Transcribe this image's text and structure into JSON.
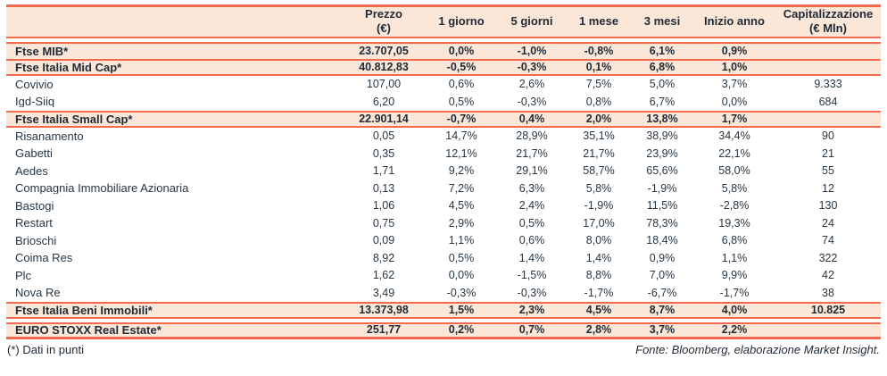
{
  "table": {
    "header": {
      "name_label": "",
      "columns": [
        {
          "line1": "Prezzo",
          "line2": "(€)"
        },
        {
          "line1": "1 giorno",
          "line2": ""
        },
        {
          "line1": "5 giorni",
          "line2": ""
        },
        {
          "line1": "1 mese",
          "line2": ""
        },
        {
          "line1": "3 mesi",
          "line2": ""
        },
        {
          "line1": "Inizio anno",
          "line2": ""
        },
        {
          "line1": "Capitalizzazione",
          "line2": "(€ Mln)"
        }
      ]
    },
    "rows": [
      {
        "name": "Ftse MIB*",
        "type": "index",
        "gap_before": true,
        "values": [
          "23.707,05",
          "0,0%",
          "-1,0%",
          "-0,8%",
          "6,1%",
          "0,9%",
          ""
        ]
      },
      {
        "name": "Ftse Italia Mid Cap*",
        "type": "index",
        "values": [
          "40.812,83",
          "-0,5%",
          "-0,3%",
          "0,1%",
          "6,8%",
          "1,0%",
          ""
        ]
      },
      {
        "name": "Covivio",
        "type": "stock",
        "values": [
          "107,00",
          "0,6%",
          "2,6%",
          "7,5%",
          "5,0%",
          "3,7%",
          "9.333"
        ]
      },
      {
        "name": "Igd-Siiq",
        "type": "stock",
        "values": [
          "6,20",
          "0,5%",
          "-0,3%",
          "0,8%",
          "6,7%",
          "0,0%",
          "684"
        ]
      },
      {
        "name": "Ftse Italia Small Cap*",
        "type": "index",
        "values": [
          "22.901,14",
          "-0,7%",
          "0,4%",
          "2,0%",
          "13,8%",
          "1,7%",
          ""
        ]
      },
      {
        "name": "Risanamento",
        "type": "stock",
        "values": [
          "0,05",
          "14,7%",
          "28,9%",
          "35,1%",
          "38,9%",
          "34,4%",
          "90"
        ]
      },
      {
        "name": "Gabetti",
        "type": "stock",
        "values": [
          "0,35",
          "12,1%",
          "21,7%",
          "21,7%",
          "23,9%",
          "22,1%",
          "21"
        ]
      },
      {
        "name": "Aedes",
        "type": "stock",
        "values": [
          "1,71",
          "9,2%",
          "29,1%",
          "58,7%",
          "65,6%",
          "58,0%",
          "55"
        ]
      },
      {
        "name": "Compagnia Immobiliare Azionaria",
        "type": "stock",
        "values": [
          "0,13",
          "7,2%",
          "6,3%",
          "5,8%",
          "-1,9%",
          "5,8%",
          "12"
        ]
      },
      {
        "name": "Bastogi",
        "type": "stock",
        "values": [
          "1,06",
          "4,5%",
          "2,4%",
          "-1,9%",
          "11,5%",
          "-2,8%",
          "130"
        ]
      },
      {
        "name": "Restart",
        "type": "stock",
        "values": [
          "0,75",
          "2,9%",
          "0,5%",
          "17,0%",
          "78,3%",
          "19,3%",
          "24"
        ]
      },
      {
        "name": "Brioschi",
        "type": "stock",
        "values": [
          "0,09",
          "1,1%",
          "0,6%",
          "8,0%",
          "18,4%",
          "6,8%",
          "74"
        ]
      },
      {
        "name": "Coima Res",
        "type": "stock",
        "values": [
          "8,92",
          "0,5%",
          "1,4%",
          "1,4%",
          "0,9%",
          "1,1%",
          "322"
        ]
      },
      {
        "name": "Plc",
        "type": "stock",
        "values": [
          "1,62",
          "0,0%",
          "-1,5%",
          "8,8%",
          "7,0%",
          "9,9%",
          "42"
        ]
      },
      {
        "name": "Nova Re",
        "type": "stock",
        "values": [
          "3,49",
          "-0,3%",
          "-0,3%",
          "-1,7%",
          "-6,7%",
          "-1,7%",
          "38"
        ]
      },
      {
        "name": "Ftse Italia Beni Immobili*",
        "type": "index",
        "values": [
          "13.373,98",
          "1,5%",
          "2,3%",
          "4,5%",
          "8,7%",
          "4,0%",
          "10.825"
        ]
      },
      {
        "name": "EURO STOXX Real Estate*",
        "type": "index",
        "gap_before": true,
        "last": true,
        "values": [
          "251,77",
          "0,2%",
          "0,7%",
          "2,8%",
          "3,7%",
          "2,2%",
          ""
        ]
      }
    ],
    "footnote": "(*) Dati in punti",
    "source": "Fonte: Bloomberg, elaborazione Market Insight."
  },
  "colors": {
    "border_accent": "#f2694d",
    "row_highlight_bg": "#fbe7d8",
    "text": "#1e2a36"
  }
}
